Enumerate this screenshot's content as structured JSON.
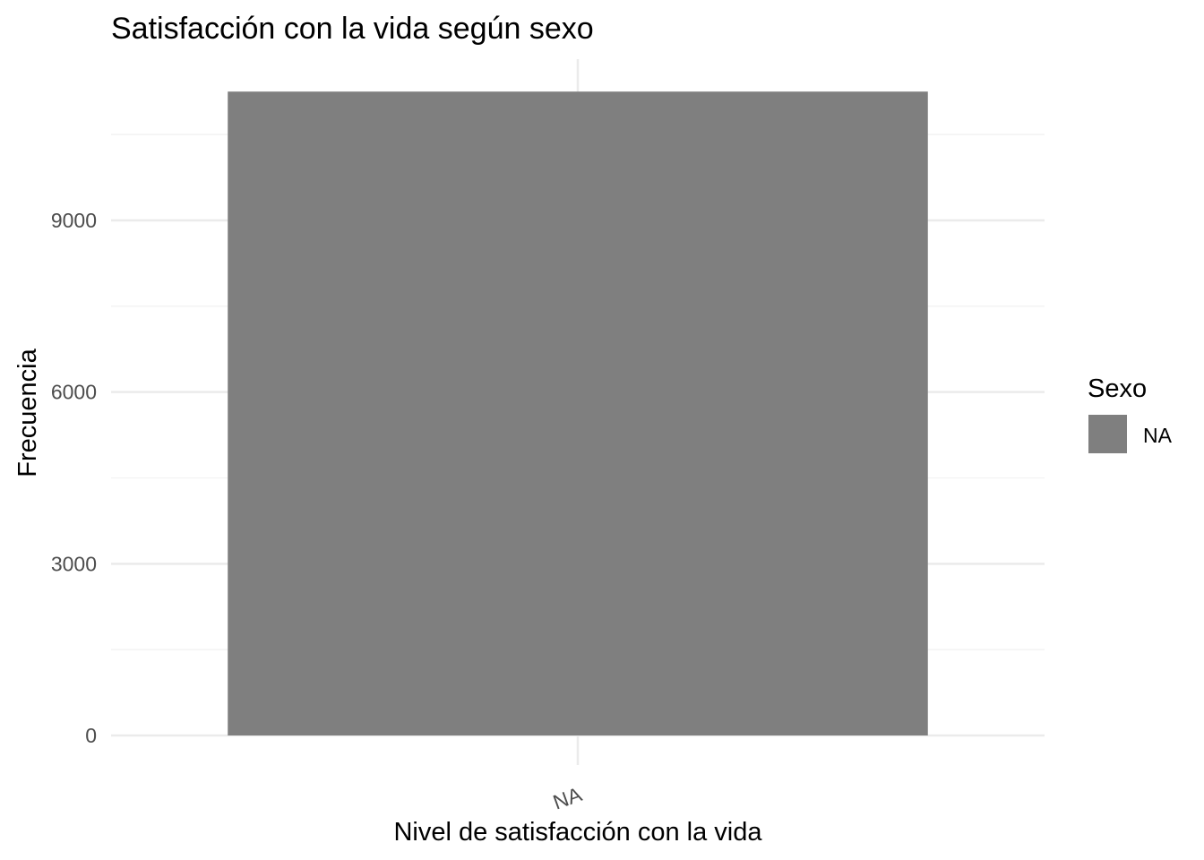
{
  "chart_data": {
    "type": "bar",
    "title": "Satisfacción con la vida según sexo",
    "xlabel": "Nivel de satisfacción con la vida",
    "ylabel": "Frecuencia",
    "categories": [
      "NA"
    ],
    "series": [
      {
        "name": "NA",
        "values": [
          11250
        ],
        "color": "#7f7f7f"
      }
    ],
    "ylim": [
      0,
      11800
    ],
    "yticks": [
      0,
      3000,
      6000,
      9000
    ],
    "yticks_labels": [
      "0",
      "3000",
      "6000",
      "9000"
    ],
    "grid": true,
    "legend": {
      "title": "Sexo",
      "position": "right",
      "entries": [
        "NA"
      ]
    }
  }
}
